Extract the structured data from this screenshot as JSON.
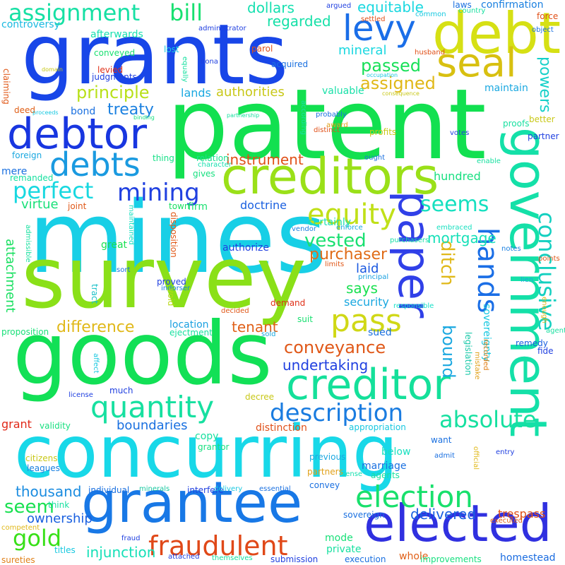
{
  "words": [
    {
      "text": "patent",
      "color": "#12e050"
    },
    {
      "text": "mines",
      "color": "#18cfe6"
    },
    {
      "text": "survey",
      "color": "#8ae018"
    },
    {
      "text": "goods",
      "color": "#12e056"
    },
    {
      "text": "concurring",
      "color": "#18d8e8"
    },
    {
      "text": "grants",
      "color": "#1846e8"
    },
    {
      "text": "grantee",
      "color": "#1878e6"
    },
    {
      "text": "creditors",
      "color": "#9ae018"
    },
    {
      "text": "creditor",
      "color": "#14e09a"
    },
    {
      "text": "debt",
      "color": "#d6e014"
    },
    {
      "text": "debtor",
      "color": "#1836e0"
    },
    {
      "text": "government",
      "color": "#14e0a8"
    },
    {
      "text": "paper",
      "color": "#3040e8"
    },
    {
      "text": "elected",
      "color": "#3030e0"
    },
    {
      "text": "seal",
      "color": "#d8c010"
    },
    {
      "text": "debts",
      "color": "#1a9ae0"
    },
    {
      "text": "levy",
      "color": "#1a6ee8"
    },
    {
      "text": "quantity",
      "color": "#16e0a0"
    },
    {
      "text": "election",
      "color": "#18e06c"
    },
    {
      "text": "fraudulent",
      "color": "#e04818"
    },
    {
      "text": "description",
      "color": "#1a7ce0"
    },
    {
      "text": "absolute",
      "color": "#16e0a0"
    },
    {
      "text": "mining",
      "color": "#2040e0"
    },
    {
      "text": "equity",
      "color": "#c0e018"
    },
    {
      "text": "conclusive",
      "color": "#14d0c0"
    },
    {
      "text": "hands",
      "color": "#1a6ee6"
    },
    {
      "text": "pass",
      "color": "#d0d816"
    },
    {
      "text": "perfect",
      "color": "#18d8e0"
    },
    {
      "text": "assignment",
      "color": "#16e0a4"
    },
    {
      "text": "seems",
      "color": "#16e0c0"
    },
    {
      "text": "bill",
      "color": "#18e070"
    },
    {
      "text": "gold",
      "color": "#38e018"
    },
    {
      "text": "seem",
      "color": "#18e050"
    },
    {
      "text": "conveyance",
      "color": "#e05818"
    },
    {
      "text": "powers",
      "color": "#14d0c8"
    },
    {
      "text": "ditch",
      "color": "#e0b818"
    },
    {
      "text": "bound",
      "color": "#1aa8e0"
    },
    {
      "text": "vested",
      "color": "#18e070"
    },
    {
      "text": "passed",
      "color": "#18e058"
    },
    {
      "text": "assigned",
      "color": "#e0b818"
    },
    {
      "text": "principle",
      "color": "#b8e018"
    },
    {
      "text": "treaty",
      "color": "#1a80e0"
    },
    {
      "text": "dollars",
      "color": "#16e0b0"
    },
    {
      "text": "equitable",
      "color": "#1ad8e0"
    },
    {
      "text": "regarded",
      "color": "#16e0a8"
    },
    {
      "text": "mortgage",
      "color": "#16e0b8"
    },
    {
      "text": "purchaser",
      "color": "#e06c18"
    },
    {
      "text": "instrument",
      "color": "#e05018"
    },
    {
      "text": "difference",
      "color": "#e0b818"
    },
    {
      "text": "undertaking",
      "color": "#2040e0"
    },
    {
      "text": "thousand",
      "color": "#1a8ce0"
    },
    {
      "text": "boundaries",
      "color": "#1a70e0"
    },
    {
      "text": "injunction",
      "color": "#16e0b8"
    },
    {
      "text": "ownership",
      "color": "#1a60e0"
    },
    {
      "text": "delivered",
      "color": "#1a60e0"
    },
    {
      "text": "tenant",
      "color": "#e06018"
    },
    {
      "text": "says",
      "color": "#18e050"
    },
    {
      "text": "laid",
      "color": "#1a58e0"
    },
    {
      "text": "security",
      "color": "#1aa8e0"
    },
    {
      "text": "authorities",
      "color": "#c8c818"
    },
    {
      "text": "lands",
      "color": "#1aa8e0"
    },
    {
      "text": "mineral",
      "color": "#1ad8e0"
    },
    {
      "text": "hundred",
      "color": "#18e080"
    },
    {
      "text": "doctrine",
      "color": "#1a60e0"
    },
    {
      "text": "authorize",
      "color": "#2040e0"
    },
    {
      "text": "virtue",
      "color": "#18e078"
    },
    {
      "text": "mere",
      "color": "#1a70e0"
    },
    {
      "text": "attachment",
      "color": "#18e060"
    },
    {
      "text": "grant",
      "color": "#e02818"
    },
    {
      "text": "trespass",
      "color": "#e05018"
    },
    {
      "text": "whole",
      "color": "#e06018"
    },
    {
      "text": "homestead",
      "color": "#1a6ce0"
    },
    {
      "text": "private",
      "color": "#18e0a0"
    },
    {
      "text": "mode",
      "color": "#18e078"
    },
    {
      "text": "fraud",
      "color": "#2040e0"
    },
    {
      "text": "sovereignty",
      "color": "#18c8e0"
    },
    {
      "text": "legislation",
      "color": "#18c8a8"
    },
    {
      "text": "confirmation",
      "color": "#1a80e0"
    },
    {
      "text": "maintain",
      "color": "#1aa8e0"
    },
    {
      "text": "valuable",
      "color": "#18e0a8"
    },
    {
      "text": "acquired",
      "color": "#1a70e0"
    },
    {
      "text": "afterwards",
      "color": "#18e0b0"
    },
    {
      "text": "conveyed",
      "color": "#18e070"
    },
    {
      "text": "levied",
      "color": "#e03018"
    },
    {
      "text": "judgments",
      "color": "#2040e0"
    },
    {
      "text": "bond",
      "color": "#1a70e0"
    },
    {
      "text": "controversy",
      "color": "#18b8e0"
    },
    {
      "text": "claiming",
      "color": "#e05818"
    },
    {
      "text": "deed",
      "color": "#e06018"
    },
    {
      "text": "foreign",
      "color": "#1aa8e0"
    },
    {
      "text": "remanded",
      "color": "#18e0a0"
    },
    {
      "text": "thing",
      "color": "#18e088"
    },
    {
      "text": "relation",
      "color": "#18e090"
    },
    {
      "text": "character",
      "color": "#18e0b0"
    },
    {
      "text": "gives",
      "color": "#18e080"
    },
    {
      "text": "firm",
      "color": "#18e070"
    },
    {
      "text": "town",
      "color": "#18e060"
    },
    {
      "text": "joint",
      "color": "#e05818"
    },
    {
      "text": "admissible",
      "color": "#18e0a0"
    },
    {
      "text": "maintained",
      "color": "#18e0c0"
    },
    {
      "text": "disposition",
      "color": "#e05818"
    },
    {
      "text": "great",
      "color": "#18e050"
    },
    {
      "text": "proved",
      "color": "#2040e0"
    },
    {
      "text": "indorser",
      "color": "#1a80e0"
    },
    {
      "text": "void",
      "color": "#b8d818"
    },
    {
      "text": "tract",
      "color": "#18c0c8"
    },
    {
      "text": "location",
      "color": "#1aa0e0"
    },
    {
      "text": "ejectment",
      "color": "#18e0a0"
    },
    {
      "text": "proposition",
      "color": "#18e078"
    },
    {
      "text": "decided",
      "color": "#e05818"
    },
    {
      "text": "sold",
      "color": "#1aa8e0"
    },
    {
      "text": "demand",
      "color": "#e03018"
    },
    {
      "text": "suit",
      "color": "#18e070"
    },
    {
      "text": "sued",
      "color": "#1a70e0"
    },
    {
      "text": "certainly",
      "color": "#18e0b0"
    },
    {
      "text": "enforce",
      "color": "#1aa8e0"
    },
    {
      "text": "vendor",
      "color": "#1a80e0"
    },
    {
      "text": "limits",
      "color": "#e05818"
    },
    {
      "text": "principal",
      "color": "#1aa0e0"
    },
    {
      "text": "purchasers",
      "color": "#18e0a8"
    },
    {
      "text": "embraced",
      "color": "#18e0c0"
    },
    {
      "text": "notes",
      "color": "#1a80e0"
    },
    {
      "text": "points",
      "color": "#e05818"
    },
    {
      "text": "lien",
      "color": "#1aa8e0"
    },
    {
      "text": "responsible",
      "color": "#18e0c8"
    },
    {
      "text": "enough",
      "color": "#e0b818"
    },
    {
      "text": "remedy",
      "color": "#1a60e0"
    },
    {
      "text": "fide",
      "color": "#2040e0"
    },
    {
      "text": "agent",
      "color": "#18e0a0"
    },
    {
      "text": "recorded",
      "color": "#e08018"
    },
    {
      "text": "mistake",
      "color": "#e0a018"
    },
    {
      "text": "decree",
      "color": "#c8c818"
    },
    {
      "text": "license",
      "color": "#2040e0"
    },
    {
      "text": "much",
      "color": "#2040e0"
    },
    {
      "text": "affect",
      "color": "#18c8e0"
    },
    {
      "text": "validity",
      "color": "#18e080"
    },
    {
      "text": "distinction",
      "color": "#e05018"
    },
    {
      "text": "appropriation",
      "color": "#18c8e0"
    },
    {
      "text": "copy",
      "color": "#18e0a0"
    },
    {
      "text": "previous",
      "color": "#1aa8e0"
    },
    {
      "text": "below",
      "color": "#18e0c0"
    },
    {
      "text": "marriage",
      "color": "#1a70e0"
    },
    {
      "text": "sense",
      "color": "#18e0b0"
    },
    {
      "text": "partners",
      "color": "#e0a018"
    },
    {
      "text": "convey",
      "color": "#1a70e0"
    },
    {
      "text": "agents",
      "color": "#18e0a0"
    },
    {
      "text": "essential",
      "color": "#1a70e0"
    },
    {
      "text": "interfere",
      "color": "#2040e0"
    },
    {
      "text": "grantor",
      "color": "#18e080"
    },
    {
      "text": "leagues",
      "color": "#1a80e0"
    },
    {
      "text": "citizens",
      "color": "#c8c818"
    },
    {
      "text": "individual",
      "color": "#1a70e0"
    },
    {
      "text": "minerals",
      "color": "#18c8a0"
    },
    {
      "text": "delivery",
      "color": "#18c8e0"
    },
    {
      "text": "official",
      "color": "#e0b818"
    },
    {
      "text": "want",
      "color": "#1a70e0"
    },
    {
      "text": "admit",
      "color": "#1a70e0"
    },
    {
      "text": "entry",
      "color": "#2040e0"
    },
    {
      "text": "executed",
      "color": "#e06018"
    },
    {
      "text": "think",
      "color": "#18e0a0"
    },
    {
      "text": "competent",
      "color": "#e0b818"
    },
    {
      "text": "titles",
      "color": "#18c8e0"
    },
    {
      "text": "sureties",
      "color": "#e08018"
    },
    {
      "text": "attached",
      "color": "#2040e0"
    },
    {
      "text": "themselves",
      "color": "#18e0a0"
    },
    {
      "text": "submission",
      "color": "#2040e0"
    },
    {
      "text": "execution",
      "color": "#1a70e0"
    },
    {
      "text": "improvements",
      "color": "#18e080"
    },
    {
      "text": "sovereign",
      "color": "#1a70e0"
    },
    {
      "text": "argued",
      "color": "#2040e0"
    },
    {
      "text": "settled",
      "color": "#e05018"
    },
    {
      "text": "common",
      "color": "#18c8e0"
    },
    {
      "text": "laws",
      "color": "#1a70e0"
    },
    {
      "text": "country",
      "color": "#18e0a0"
    },
    {
      "text": "force",
      "color": "#e05018"
    },
    {
      "text": "object",
      "color": "#1a70e0"
    },
    {
      "text": "administrator",
      "color": "#2040e0"
    },
    {
      "text": "parol",
      "color": "#e05018"
    },
    {
      "text": "husband",
      "color": "#e05018"
    },
    {
      "text": "lost",
      "color": "#18c8e0"
    },
    {
      "text": "bona",
      "color": "#2040e0"
    },
    {
      "text": "equally",
      "color": "#18e0a0"
    },
    {
      "text": "domain",
      "color": "#c8c818"
    },
    {
      "text": "occupation",
      "color": "#18c8e0"
    },
    {
      "text": "consequence",
      "color": "#c8c818"
    },
    {
      "text": "proceeds",
      "color": "#18c8e0"
    },
    {
      "text": "binding",
      "color": "#18e080"
    },
    {
      "text": "partnership",
      "color": "#18e0a0"
    },
    {
      "text": "probably",
      "color": "#1a70e0"
    },
    {
      "text": "award",
      "color": "#e0a018"
    },
    {
      "text": "distinct",
      "color": "#e05018"
    },
    {
      "text": "according",
      "color": "#18e0a0"
    },
    {
      "text": "profits",
      "color": "#c8c818"
    },
    {
      "text": "votes",
      "color": "#2040e0"
    },
    {
      "text": "proofs",
      "color": "#18e0a0"
    },
    {
      "text": "better",
      "color": "#c8c818"
    },
    {
      "text": "partner",
      "color": "#2040e0"
    },
    {
      "text": "ought",
      "color": "#1a70e0"
    },
    {
      "text": "enable",
      "color": "#18e0a0"
    },
    {
      "text": "sort",
      "color": "#1a70e0"
    }
  ]
}
